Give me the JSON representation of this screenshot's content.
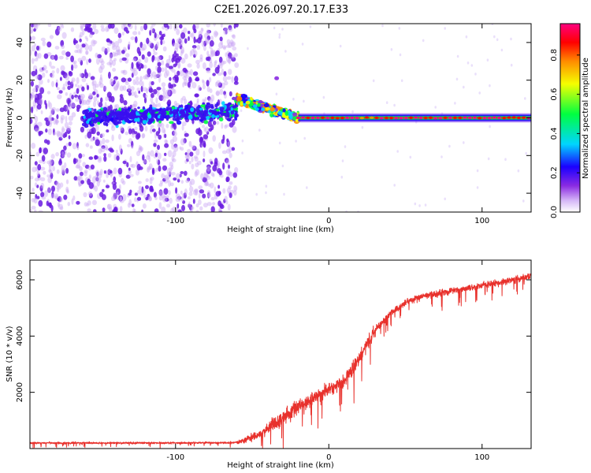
{
  "figure_title": "C2E1.2026.097.20.17.E33",
  "colors": {
    "snr_line": "#e8312c",
    "axis": "#000000",
    "colormap": [
      "#ffffff",
      "#c9a6f5",
      "#8a2be2",
      "#1b00ff",
      "#00d5ff",
      "#00ff40",
      "#f5ff00",
      "#ff8c00",
      "#ff0000",
      "#ff0080"
    ]
  },
  "chart_data": [
    {
      "id": "spectrogram",
      "type": "heatmap",
      "xlabel": "Height of straight line (km)",
      "ylabel": "Frequency (Hz)",
      "xlim": [
        -195,
        132
      ],
      "ylim": [
        -50,
        50
      ],
      "xticks": [
        -100,
        0,
        100
      ],
      "xticklabels": [
        "-100",
        "0",
        "100"
      ],
      "yticks": [
        -40,
        -20,
        0,
        20,
        40
      ],
      "yticklabels": [
        "-40",
        "-20",
        "0",
        "20",
        "40"
      ],
      "colorbar": {
        "label": "Normalized spectral amplitude",
        "range": [
          0,
          0.96
        ],
        "ticks": [
          0.0,
          0.2,
          0.4,
          0.6,
          0.8
        ],
        "ticklabels": [
          "0.0",
          "0.2",
          "0.4",
          "0.6",
          "0.8"
        ]
      },
      "features": [
        {
          "name": "noise scatter",
          "x_range": [
            -195,
            -60
          ],
          "freq_range": [
            -50,
            50
          ],
          "amplitude": 0.12
        },
        {
          "name": "weak central band",
          "x_range": [
            -160,
            -60
          ],
          "freq_center": 0,
          "freq_width": 10,
          "amplitude": 0.25
        },
        {
          "name": "rising arc",
          "x_range": [
            -60,
            -20
          ],
          "freq_start": 10,
          "freq_end": 0,
          "amplitude": 0.45
        },
        {
          "name": "carrier line",
          "x_range": [
            -20,
            132
          ],
          "freq_center": 0,
          "amplitude": 0.9
        }
      ]
    },
    {
      "id": "snr",
      "type": "line",
      "xlabel": "Height of straight line (km)",
      "ylabel": "SNR (10 * v/v)",
      "xlim": [
        -195,
        132
      ],
      "ylim": [
        0,
        6700
      ],
      "xticks": [
        -100,
        0,
        100
      ],
      "xticklabels": [
        "-100",
        "0",
        "100"
      ],
      "yticks": [
        2000,
        4000,
        6000
      ],
      "yticklabels": [
        "2000",
        "4000",
        "6000"
      ],
      "series": [
        {
          "name": "SNR",
          "x": [
            -195,
            -150,
            -100,
            -70,
            -60,
            -45,
            -35,
            -25,
            -20,
            -10,
            0,
            10,
            20,
            30,
            40,
            50,
            60,
            70,
            80,
            90,
            100,
            110,
            120,
            132
          ],
          "values": [
            200,
            200,
            200,
            210,
            220,
            500,
            900,
            1300,
            1500,
            1800,
            2100,
            2400,
            3200,
            4200,
            4800,
            5200,
            5400,
            5500,
            5600,
            5700,
            5800,
            5900,
            6000,
            6150
          ]
        }
      ]
    }
  ]
}
